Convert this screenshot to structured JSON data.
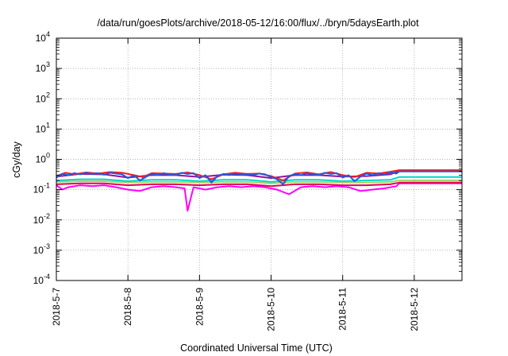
{
  "chart_data": {
    "type": "line",
    "title": "/data/run/goesPlots/archive/2018-05-12/16:00/flux/../bryn/5daysEarth.plot",
    "xlabel": "Coordinated Universal Time (UTC)",
    "ylabel": "cGy/day",
    "y_scale": "log",
    "ylim": [
      0.0001,
      10000
    ],
    "y_ticks": [
      {
        "value": 0.0001,
        "base": "10",
        "exp": "-4"
      },
      {
        "value": 0.001,
        "base": "10",
        "exp": "-3"
      },
      {
        "value": 0.01,
        "base": "10",
        "exp": "-2"
      },
      {
        "value": 0.1,
        "base": "10",
        "exp": "-1"
      },
      {
        "value": 1,
        "base": "10",
        "exp": "0"
      },
      {
        "value": 10,
        "base": "10",
        "exp": "1"
      },
      {
        "value": 100,
        "base": "10",
        "exp": "2"
      },
      {
        "value": 1000,
        "base": "10",
        "exp": "3"
      },
      {
        "value": 10000,
        "base": "10",
        "exp": "4"
      }
    ],
    "xlim": [
      "2018-05-07T00:00",
      "2018-05-12T16:00"
    ],
    "x_tick_labels": [
      "2018-5-7",
      "2018-5-8",
      "2018-5-9",
      "2018-5-10",
      "2018-5-11",
      "2018-5-12"
    ],
    "x_tick_values": [
      "2018-05-07",
      "2018-05-08",
      "2018-05-09",
      "2018-05-10",
      "2018-05-11",
      "2018-05-12"
    ],
    "grid": true,
    "legend": "none",
    "series": [
      {
        "color": "#ff00ff",
        "x": [
          "2018-05-07T00:00",
          "2018-05-07T02:00",
          "2018-05-07T04:00",
          "2018-05-07T08:00",
          "2018-05-07T12:00",
          "2018-05-07T16:00",
          "2018-05-07T20:00",
          "2018-05-08T00:00",
          "2018-05-08T04:00",
          "2018-05-08T08:00",
          "2018-05-08T12:00",
          "2018-05-08T16:00",
          "2018-05-08T19:00",
          "2018-05-08T20:00",
          "2018-05-08T22:00",
          "2018-05-09T02:00",
          "2018-05-09T06:00",
          "2018-05-09T10:00",
          "2018-05-09T14:00",
          "2018-05-09T18:00",
          "2018-05-09T22:00",
          "2018-05-10T02:00",
          "2018-05-10T06:00",
          "2018-05-10T10:00",
          "2018-05-10T14:00",
          "2018-05-10T18:00",
          "2018-05-10T22:00",
          "2018-05-11T02:00",
          "2018-05-11T06:00",
          "2018-05-11T10:00",
          "2018-05-11T14:00",
          "2018-05-11T18:00",
          "2018-05-11T19:00",
          "2018-05-12T16:00"
        ],
        "y": [
          0.14,
          0.1,
          0.12,
          0.14,
          0.13,
          0.14,
          0.12,
          0.1,
          0.09,
          0.12,
          0.13,
          0.12,
          0.11,
          0.02,
          0.12,
          0.1,
          0.12,
          0.13,
          0.12,
          0.13,
          0.12,
          0.1,
          0.07,
          0.12,
          0.13,
          0.12,
          0.13,
          0.12,
          0.09,
          0.1,
          0.11,
          0.13,
          0.16,
          0.16
        ]
      },
      {
        "color": "#e5004f",
        "x": [
          "2018-05-07T00:00",
          "2018-05-07T08:00",
          "2018-05-07T16:00",
          "2018-05-08T00:00",
          "2018-05-08T08:00",
          "2018-05-08T16:00",
          "2018-05-09T00:00",
          "2018-05-09T08:00",
          "2018-05-09T16:00",
          "2018-05-10T00:00",
          "2018-05-10T08:00",
          "2018-05-10T16:00",
          "2018-05-11T00:00",
          "2018-05-11T08:00",
          "2018-05-11T16:00",
          "2018-05-11T19:00",
          "2018-05-12T16:00"
        ],
        "y": [
          0.15,
          0.16,
          0.16,
          0.14,
          0.15,
          0.15,
          0.14,
          0.15,
          0.15,
          0.13,
          0.15,
          0.15,
          0.14,
          0.14,
          0.15,
          0.17,
          0.17
        ]
      },
      {
        "color": "#9fd36a",
        "x": [
          "2018-05-07T00:00",
          "2018-05-07T08:00",
          "2018-05-07T16:00",
          "2018-05-08T00:00",
          "2018-05-08T08:00",
          "2018-05-08T16:00",
          "2018-05-09T00:00",
          "2018-05-09T08:00",
          "2018-05-09T16:00",
          "2018-05-10T00:00",
          "2018-05-10T08:00",
          "2018-05-10T16:00",
          "2018-05-11T00:00",
          "2018-05-11T08:00",
          "2018-05-11T16:00",
          "2018-05-11T19:00",
          "2018-05-12T16:00"
        ],
        "y": [
          0.18,
          0.19,
          0.19,
          0.17,
          0.18,
          0.18,
          0.17,
          0.18,
          0.18,
          0.16,
          0.18,
          0.18,
          0.17,
          0.17,
          0.18,
          0.2,
          0.2
        ]
      },
      {
        "color": "#00d6c8",
        "x": [
          "2018-05-07T00:00",
          "2018-05-07T08:00",
          "2018-05-07T16:00",
          "2018-05-08T00:00",
          "2018-05-08T08:00",
          "2018-05-08T16:00",
          "2018-05-09T00:00",
          "2018-05-09T08:00",
          "2018-05-09T16:00",
          "2018-05-10T00:00",
          "2018-05-10T08:00",
          "2018-05-10T16:00",
          "2018-05-11T00:00",
          "2018-05-11T08:00",
          "2018-05-11T16:00",
          "2018-05-11T19:00",
          "2018-05-12T16:00"
        ],
        "y": [
          0.2,
          0.22,
          0.22,
          0.19,
          0.21,
          0.21,
          0.19,
          0.21,
          0.21,
          0.18,
          0.21,
          0.21,
          0.19,
          0.2,
          0.21,
          0.26,
          0.26
        ]
      },
      {
        "color": "#9b0f9b",
        "x": [
          "2018-05-07T00:00",
          "2018-05-07T08:00",
          "2018-05-07T16:00",
          "2018-05-08T00:00",
          "2018-05-08T08:00",
          "2018-05-08T16:00",
          "2018-05-09T00:00",
          "2018-05-09T08:00",
          "2018-05-09T16:00",
          "2018-05-10T00:00",
          "2018-05-10T08:00",
          "2018-05-10T16:00",
          "2018-05-11T00:00",
          "2018-05-11T08:00",
          "2018-05-11T16:00",
          "2018-05-11T19:00",
          "2018-05-12T16:00"
        ],
        "y": [
          0.27,
          0.33,
          0.32,
          0.25,
          0.3,
          0.3,
          0.26,
          0.31,
          0.3,
          0.24,
          0.3,
          0.3,
          0.27,
          0.28,
          0.32,
          0.42,
          0.42
        ]
      },
      {
        "color": "#ff1a1a",
        "x": [
          "2018-05-07T00:00",
          "2018-05-07T03:00",
          "2018-05-07T06:00",
          "2018-05-07T10:00",
          "2018-05-07T14:00",
          "2018-05-07T18:00",
          "2018-05-07T22:00",
          "2018-05-08T02:00",
          "2018-05-08T05:00",
          "2018-05-08T08:00",
          "2018-05-08T12:00",
          "2018-05-08T16:00",
          "2018-05-08T20:00",
          "2018-05-09T00:00",
          "2018-05-09T04:00",
          "2018-05-09T08:00",
          "2018-05-09T12:00",
          "2018-05-09T16:00",
          "2018-05-09T20:00",
          "2018-05-10T00:00",
          "2018-05-10T04:00",
          "2018-05-10T08:00",
          "2018-05-10T12:00",
          "2018-05-10T16:00",
          "2018-05-10T20:00",
          "2018-05-11T00:00",
          "2018-05-11T04:00",
          "2018-05-11T08:00",
          "2018-05-11T12:00",
          "2018-05-11T16:00",
          "2018-05-11T19:00",
          "2018-05-12T16:00"
        ],
        "y": [
          0.28,
          0.36,
          0.32,
          0.37,
          0.34,
          0.38,
          0.36,
          0.3,
          0.26,
          0.35,
          0.34,
          0.33,
          0.37,
          0.3,
          0.22,
          0.32,
          0.36,
          0.33,
          0.34,
          0.28,
          0.2,
          0.34,
          0.37,
          0.32,
          0.38,
          0.3,
          0.26,
          0.36,
          0.34,
          0.39,
          0.44,
          0.44
        ]
      },
      {
        "color": "#1f5adf",
        "x": [
          "2018-05-07T00:00",
          "2018-05-07T02:00",
          "2018-05-07T04:00",
          "2018-05-07T06:00",
          "2018-05-07T08:00",
          "2018-05-07T10:00",
          "2018-05-07T12:00",
          "2018-05-07T14:00",
          "2018-05-07T16:00",
          "2018-05-07T18:00",
          "2018-05-07T20:00",
          "2018-05-07T22:00",
          "2018-05-08T00:00",
          "2018-05-08T02:00",
          "2018-05-08T04:00",
          "2018-05-08T06:00",
          "2018-05-08T08:00",
          "2018-05-08T10:00",
          "2018-05-08T12:00",
          "2018-05-08T14:00",
          "2018-05-08T16:00",
          "2018-05-08T18:00",
          "2018-05-08T20:00",
          "2018-05-08T22:00",
          "2018-05-09T00:00",
          "2018-05-09T02:00",
          "2018-05-09T04:00",
          "2018-05-09T06:00",
          "2018-05-09T08:00",
          "2018-05-09T10:00",
          "2018-05-09T12:00",
          "2018-05-09T14:00",
          "2018-05-09T16:00",
          "2018-05-09T18:00",
          "2018-05-09T20:00",
          "2018-05-09T22:00",
          "2018-05-10T00:00",
          "2018-05-10T02:00",
          "2018-05-10T04:00",
          "2018-05-10T06:00",
          "2018-05-10T08:00",
          "2018-05-10T10:00",
          "2018-05-10T12:00",
          "2018-05-10T14:00",
          "2018-05-10T16:00",
          "2018-05-10T18:00",
          "2018-05-10T20:00",
          "2018-05-10T22:00",
          "2018-05-11T00:00",
          "2018-05-11T02:00",
          "2018-05-11T04:00",
          "2018-05-11T06:00",
          "2018-05-11T08:00",
          "2018-05-11T10:00",
          "2018-05-11T12:00",
          "2018-05-11T14:00",
          "2018-05-11T16:00",
          "2018-05-11T18:00",
          "2018-05-11T19:00",
          "2018-05-12T16:00"
        ],
        "y": [
          0.25,
          0.33,
          0.3,
          0.35,
          0.32,
          0.36,
          0.33,
          0.35,
          0.31,
          0.36,
          0.34,
          0.32,
          0.24,
          0.3,
          0.2,
          0.26,
          0.33,
          0.3,
          0.35,
          0.31,
          0.3,
          0.36,
          0.33,
          0.35,
          0.24,
          0.3,
          0.17,
          0.28,
          0.33,
          0.3,
          0.34,
          0.31,
          0.33,
          0.3,
          0.34,
          0.32,
          0.26,
          0.22,
          0.15,
          0.28,
          0.33,
          0.3,
          0.35,
          0.32,
          0.3,
          0.36,
          0.33,
          0.35,
          0.25,
          0.3,
          0.19,
          0.27,
          0.34,
          0.3,
          0.35,
          0.32,
          0.37,
          0.34,
          0.4,
          0.4
        ]
      }
    ]
  }
}
